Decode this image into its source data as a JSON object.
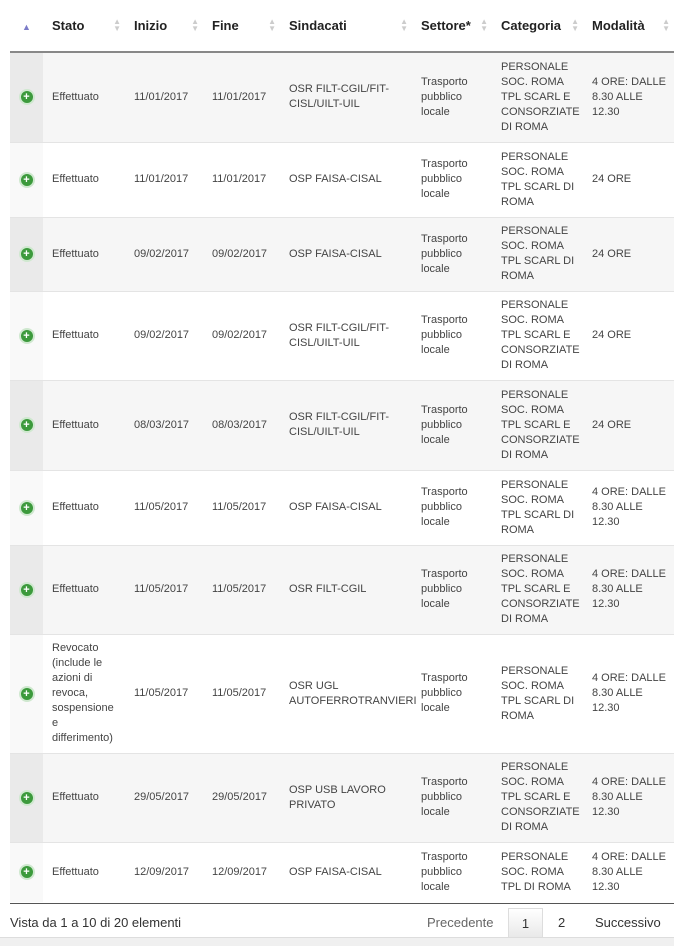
{
  "headers": [
    "Stato",
    "Inizio",
    "Fine",
    "Sindacati",
    "Settore*",
    "Categoria",
    "Modalità"
  ],
  "rows": [
    {
      "stato": "Effettuato",
      "inizio": "11/01/2017",
      "fine": "11/01/2017",
      "sindacati": "OSR FILT-CGIL/FIT-CISL/UILT-UIL",
      "settore": "Trasporto pubblico locale",
      "categoria": "PERSONALE SOC. ROMA TPL SCARL E CONSORZIATE DI ROMA",
      "modalita": "4 ORE: DALLE 8.30 ALLE 12.30"
    },
    {
      "stato": "Effettuato",
      "inizio": "11/01/2017",
      "fine": "11/01/2017",
      "sindacati": "OSP FAISA-CISAL",
      "settore": "Trasporto pubblico locale",
      "categoria": "PERSONALE SOC. ROMA TPL SCARL DI ROMA",
      "modalita": "24 ORE"
    },
    {
      "stato": "Effettuato",
      "inizio": "09/02/2017",
      "fine": "09/02/2017",
      "sindacati": "OSP FAISA-CISAL",
      "settore": "Trasporto pubblico locale",
      "categoria": "PERSONALE SOC. ROMA TPL SCARL DI ROMA",
      "modalita": "24 ORE"
    },
    {
      "stato": "Effettuato",
      "inizio": "09/02/2017",
      "fine": "09/02/2017",
      "sindacati": "OSR FILT-CGIL/FIT-CISL/UILT-UIL",
      "settore": "Trasporto pubblico locale",
      "categoria": "PERSONALE SOC. ROMA TPL SCARL E CONSORZIATE DI ROMA",
      "modalita": "24 ORE"
    },
    {
      "stato": "Effettuato",
      "inizio": "08/03/2017",
      "fine": "08/03/2017",
      "sindacati": "OSR FILT-CGIL/FIT-CISL/UILT-UIL",
      "settore": "Trasporto pubblico locale",
      "categoria": "PERSONALE SOC. ROMA TPL SCARL E CONSORZIATE DI ROMA",
      "modalita": "24 ORE"
    },
    {
      "stato": "Effettuato",
      "inizio": "11/05/2017",
      "fine": "11/05/2017",
      "sindacati": "OSP FAISA-CISAL",
      "settore": "Trasporto pubblico locale",
      "categoria": "PERSONALE SOC. ROMA TPL SCARL DI ROMA",
      "modalita": "4 ORE: DALLE 8.30 ALLE 12.30"
    },
    {
      "stato": "Effettuato",
      "inizio": "11/05/2017",
      "fine": "11/05/2017",
      "sindacati": "OSR FILT-CGIL",
      "settore": "Trasporto pubblico locale",
      "categoria": "PERSONALE SOC. ROMA TPL SCARL E CONSORZIATE DI ROMA",
      "modalita": "4 ORE: DALLE 8.30 ALLE 12.30"
    },
    {
      "stato": "Revocato (include le azioni di revoca, sospensione e differimento)",
      "inizio": "11/05/2017",
      "fine": "11/05/2017",
      "sindacati": "OSR UGL AUTOFERROTRANVIERI",
      "settore": "Trasporto pubblico locale",
      "categoria": "PERSONALE SOC. ROMA TPL SCARL DI ROMA",
      "modalita": "4 ORE: DALLE 8.30 ALLE 12.30"
    },
    {
      "stato": "Effettuato",
      "inizio": "29/05/2017",
      "fine": "29/05/2017",
      "sindacati": "OSP USB LAVORO PRIVATO",
      "settore": "Trasporto pubblico locale",
      "categoria": "PERSONALE SOC. ROMA TPL SCARL E CONSORZIATE DI ROMA",
      "modalita": "4 ORE: DALLE 8.30 ALLE 12.30"
    },
    {
      "stato": "Effettuato",
      "inizio": "12/09/2017",
      "fine": "12/09/2017",
      "sindacati": "OSP FAISA-CISAL",
      "settore": "Trasporto pubblico locale",
      "categoria": "PERSONALE SOC. ROMA TPL DI ROMA",
      "modalita": "4 ORE: DALLE 8.30 ALLE 12.30"
    }
  ],
  "footer": {
    "info": "Vista da 1 a 10 di 20 elementi",
    "prev": "Precedente",
    "page1": "1",
    "page2": "2",
    "next": "Successivo"
  },
  "colors": {
    "expand": "#3c9a3c",
    "sort_active": "#7b7bc8"
  }
}
